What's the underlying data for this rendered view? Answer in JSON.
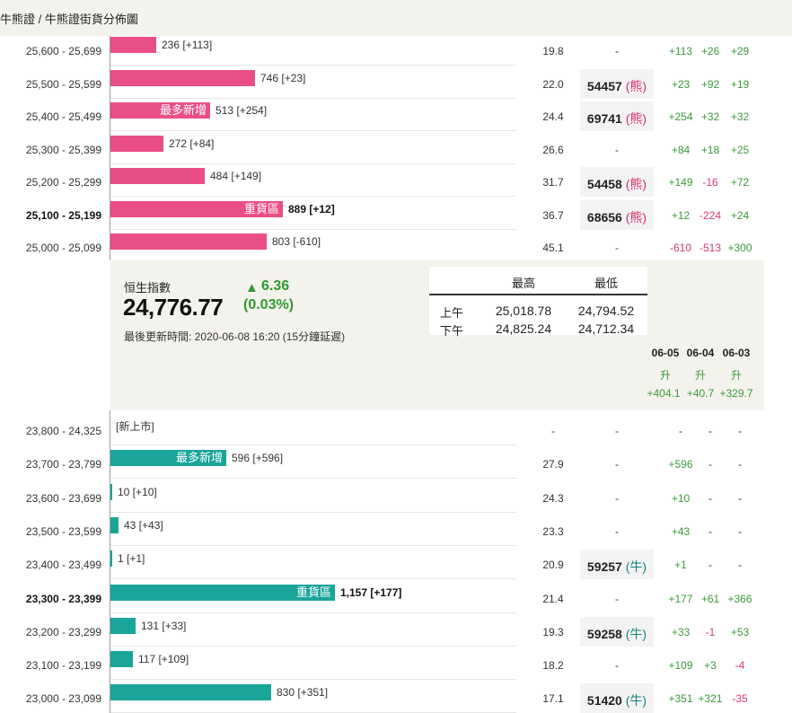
{
  "header": {
    "breadcrumb": "牛熊證 / 牛熊證街貨分佈圖"
  },
  "bear_rows": [
    {
      "range": "25,600 - 25,699",
      "qty": 236,
      "qty_text": "236 [+113]",
      "tag": "",
      "dist": "19.8",
      "code": "",
      "type": "",
      "chg": [
        "+113",
        "+26",
        "+29"
      ],
      "bold": false
    },
    {
      "range": "25,500 - 25,599",
      "qty": 746,
      "qty_text": "746 [+23]",
      "tag": "",
      "dist": "22.0",
      "code": "54457",
      "type": "熊",
      "chg": [
        "+23",
        "+92",
        "+19"
      ],
      "bold": false
    },
    {
      "range": "25,400 - 25,499",
      "qty": 513,
      "qty_text": "513 [+254]",
      "tag": "最多新增",
      "dist": "24.4",
      "code": "69741",
      "type": "熊",
      "chg": [
        "+254",
        "+32",
        "+32"
      ],
      "bold": false
    },
    {
      "range": "25,300 - 25,399",
      "qty": 272,
      "qty_text": "272 [+84]",
      "tag": "",
      "dist": "26.6",
      "code": "",
      "type": "",
      "chg": [
        "+84",
        "+18",
        "+25"
      ],
      "bold": false
    },
    {
      "range": "25,200 - 25,299",
      "qty": 484,
      "qty_text": "484 [+149]",
      "tag": "",
      "dist": "31.7",
      "code": "54458",
      "type": "熊",
      "chg": [
        "+149",
        "-16",
        "+72"
      ],
      "bold": false
    },
    {
      "range": "25,100 - 25,199",
      "qty": 889,
      "qty_text": "889 [+12]",
      "tag": "重貨區",
      "dist": "36.7",
      "code": "68656",
      "type": "熊",
      "chg": [
        "+12",
        "-224",
        "+24"
      ],
      "bold": true
    },
    {
      "range": "25,000 - 25,099",
      "qty": 803,
      "qty_text": "803 [-610]",
      "tag": "",
      "dist": "45.1",
      "code": "",
      "type": "",
      "chg": [
        "-610",
        "-513",
        "+300"
      ],
      "bold": false
    }
  ],
  "index": {
    "name": "恒生指數",
    "value": "24,776.77",
    "change": "6.36",
    "change_pct": "(0.03%)",
    "updated": "最後更新時間: 2020-06-08 16:20 (15分鐘延遲)",
    "high_label": "最高",
    "low_label": "最低",
    "am_label": "上午",
    "pm_label": "下午",
    "am_high": "25,018.78",
    "am_low": "24,794.52",
    "pm_high": "24,825.24",
    "pm_low": "24,712.34",
    "dates": [
      "06-05",
      "06-04",
      "06-03"
    ],
    "directions": [
      "升",
      "升",
      "升"
    ],
    "date_changes": [
      "+404.1",
      "+40.7",
      "+329.7"
    ]
  },
  "bull_rows": [
    {
      "range": "23,800 - 24,325",
      "qty": 0,
      "qty_text": "[新上市]",
      "tag": "",
      "dist": "-",
      "code": "",
      "type": "",
      "chg": [
        "-",
        "-",
        "-"
      ],
      "bold": false
    },
    {
      "range": "23,700 - 23,799",
      "qty": 596,
      "qty_text": "596 [+596]",
      "tag": "最多新增",
      "dist": "27.9",
      "code": "",
      "type": "",
      "chg": [
        "+596",
        "-",
        "-"
      ],
      "bold": false
    },
    {
      "range": "23,600 - 23,699",
      "qty": 10,
      "qty_text": "10 [+10]",
      "tag": "",
      "dist": "24.3",
      "code": "",
      "type": "",
      "chg": [
        "+10",
        "-",
        "-"
      ],
      "bold": false
    },
    {
      "range": "23,500 - 23,599",
      "qty": 43,
      "qty_text": "43 [+43]",
      "tag": "",
      "dist": "23.3",
      "code": "",
      "type": "",
      "chg": [
        "+43",
        "-",
        "-"
      ],
      "bold": false
    },
    {
      "range": "23,400 - 23,499",
      "qty": 1,
      "qty_text": "1 [+1]",
      "tag": "",
      "dist": "20.9",
      "code": "59257",
      "type": "牛",
      "chg": [
        "+1",
        "-",
        "-"
      ],
      "bold": false
    },
    {
      "range": "23,300 - 23,399",
      "qty": 1157,
      "qty_text": "1,157 [+177]",
      "tag": "重貨區",
      "dist": "21.4",
      "code": "",
      "type": "",
      "chg": [
        "+177",
        "+61",
        "+366"
      ],
      "bold": true
    },
    {
      "range": "23,200 - 23,299",
      "qty": 131,
      "qty_text": "131 [+33]",
      "tag": "",
      "dist": "19.3",
      "code": "59258",
      "type": "牛",
      "chg": [
        "+33",
        "-1",
        "+53"
      ],
      "bold": false
    },
    {
      "range": "23,100 - 23,199",
      "qty": 117,
      "qty_text": "117 [+109]",
      "tag": "",
      "dist": "18.2",
      "code": "",
      "type": "",
      "chg": [
        "+109",
        "+3",
        "-4"
      ],
      "bold": false
    },
    {
      "range": "23,000 - 23,099",
      "qty": 830,
      "qty_text": "830 [+351]",
      "tag": "",
      "dist": "17.1",
      "code": "51420",
      "type": "牛",
      "chg": [
        "+351",
        "+321",
        "-35"
      ],
      "bold": false
    }
  ],
  "colors": {
    "bear": "#e94f86",
    "bull": "#1aa59b",
    "up": "#3a9a3a",
    "down": "#d63b6b",
    "panel": "#f4f2ec"
  }
}
